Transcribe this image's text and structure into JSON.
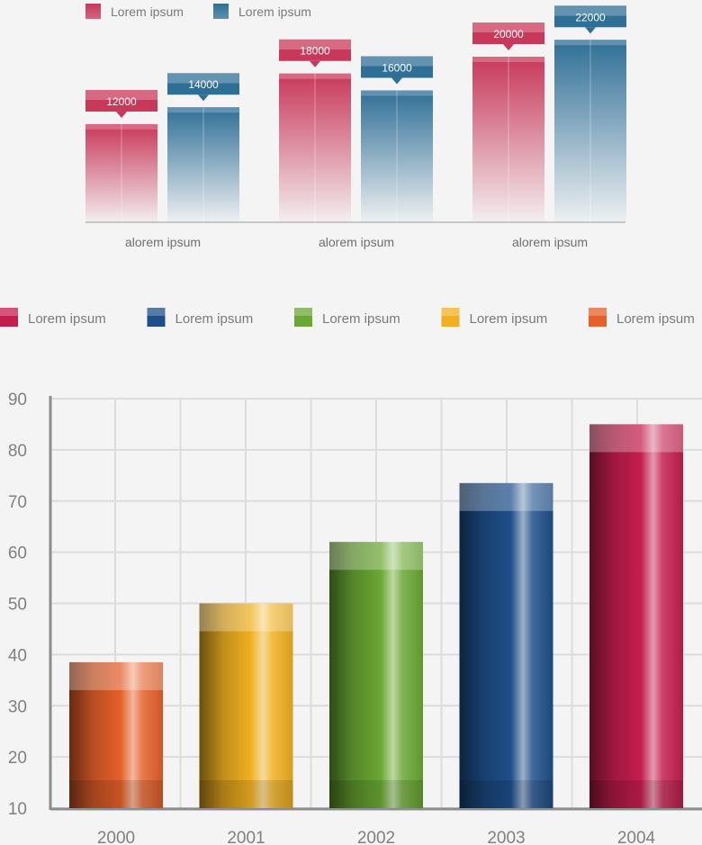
{
  "chart_data": [
    {
      "type": "bar",
      "title": "",
      "legend": [
        {
          "name": "Lorem ipsum",
          "color": "#c8385a"
        },
        {
          "name": "Lorem ipsum",
          "color": "#2f6f96"
        }
      ],
      "legend_placement": "top-left",
      "categories": [
        "alorem ipsum",
        "alorem ipsum",
        "alorem ipsum"
      ],
      "series": [
        {
          "name": "Lorem ipsum",
          "color": "#c8385a",
          "values": [
            12000,
            18000,
            20000
          ],
          "labels": [
            "12000",
            "18000",
            "20000"
          ]
        },
        {
          "name": "Lorem ipsum",
          "color": "#2f6f96",
          "values": [
            14000,
            16000,
            22000
          ],
          "labels": [
            "14000",
            "16000",
            "22000"
          ]
        }
      ],
      "ylim": [
        6000,
        24000
      ],
      "grid": false
    },
    {
      "type": "bar",
      "title": "",
      "legend": [
        {
          "name": "Lorem ipsum",
          "color": "#c41e4e"
        },
        {
          "name": "Lorem ipsum",
          "color": "#1e4f8a"
        },
        {
          "name": "Lorem ipsum",
          "color": "#6aa833"
        },
        {
          "name": "Lorem ipsum",
          "color": "#f0b020"
        },
        {
          "name": "Lorem ipsum",
          "color": "#e5602a"
        }
      ],
      "legend_placement": "top",
      "categories": [
        "2000",
        "2001",
        "2002",
        "2003",
        "2004"
      ],
      "values": [
        38.5,
        50,
        62,
        73.5,
        85
      ],
      "colors": [
        "#e5602a",
        "#f0b020",
        "#6aa833",
        "#1e4f8a",
        "#c41e4e"
      ],
      "ylim": [
        10,
        90
      ],
      "yticks": [
        "10",
        "20",
        "30",
        "40",
        "50",
        "60",
        "70",
        "80",
        "90"
      ],
      "xlabel": "",
      "ylabel": "",
      "grid": true
    }
  ]
}
